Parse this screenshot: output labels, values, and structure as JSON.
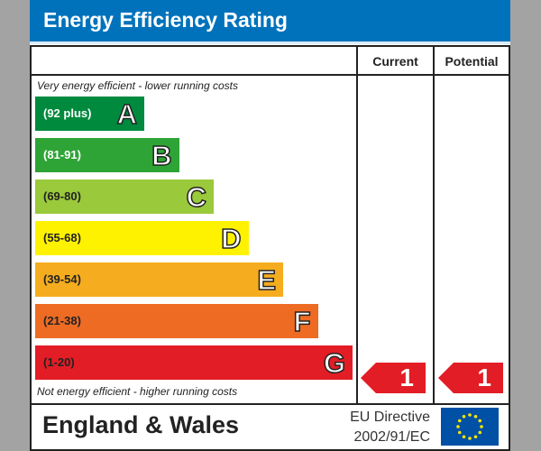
{
  "title": "Energy Efficiency Rating",
  "columns": {
    "current": "Current",
    "potential": "Potential"
  },
  "notes": {
    "top": "Very energy efficient - lower running costs",
    "bottom": "Not energy efficient - higher running costs"
  },
  "footer": {
    "country": "England & Wales",
    "directive_line1": "EU Directive",
    "directive_line2": "2002/91/EC",
    "flag_icon": "eu-flag-icon"
  },
  "chart_data": {
    "type": "bar",
    "bands": [
      {
        "range": "(92 plus)",
        "letter": "A",
        "color": "#008a3e",
        "text_color": "#ffffff"
      },
      {
        "range": "(81-91)",
        "letter": "B",
        "color": "#2ea436",
        "text_color": "#ffffff"
      },
      {
        "range": "(69-80)",
        "letter": "C",
        "color": "#9ac93b",
        "text_color": "#222222"
      },
      {
        "range": "(55-68)",
        "letter": "D",
        "color": "#fff200",
        "text_color": "#222222"
      },
      {
        "range": "(39-54)",
        "letter": "E",
        "color": "#f5ad1f",
        "text_color": "#222222"
      },
      {
        "range": "(21-38)",
        "letter": "F",
        "color": "#ee6b24",
        "text_color": "#222222"
      },
      {
        "range": "(1-20)",
        "letter": "G",
        "color": "#e31d25",
        "text_color": "#222222"
      }
    ],
    "current": {
      "value": "1",
      "band": "G"
    },
    "potential": {
      "value": "1",
      "band": "G"
    }
  }
}
